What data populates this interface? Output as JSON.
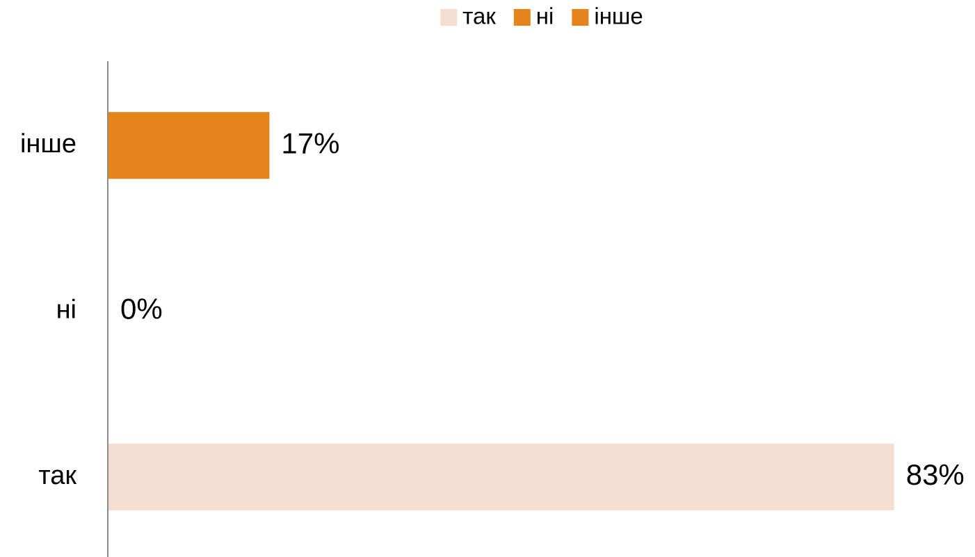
{
  "chart_data": {
    "type": "barh",
    "categories": [
      "так",
      "ні",
      "інше"
    ],
    "values": [
      83,
      0,
      17
    ],
    "value_labels": [
      "83%",
      "0%",
      "17%"
    ],
    "colors": [
      "#f5ddd1",
      "#e5841a",
      "#e5841a"
    ],
    "xlim": [
      0,
      90
    ],
    "legend": "top"
  }
}
